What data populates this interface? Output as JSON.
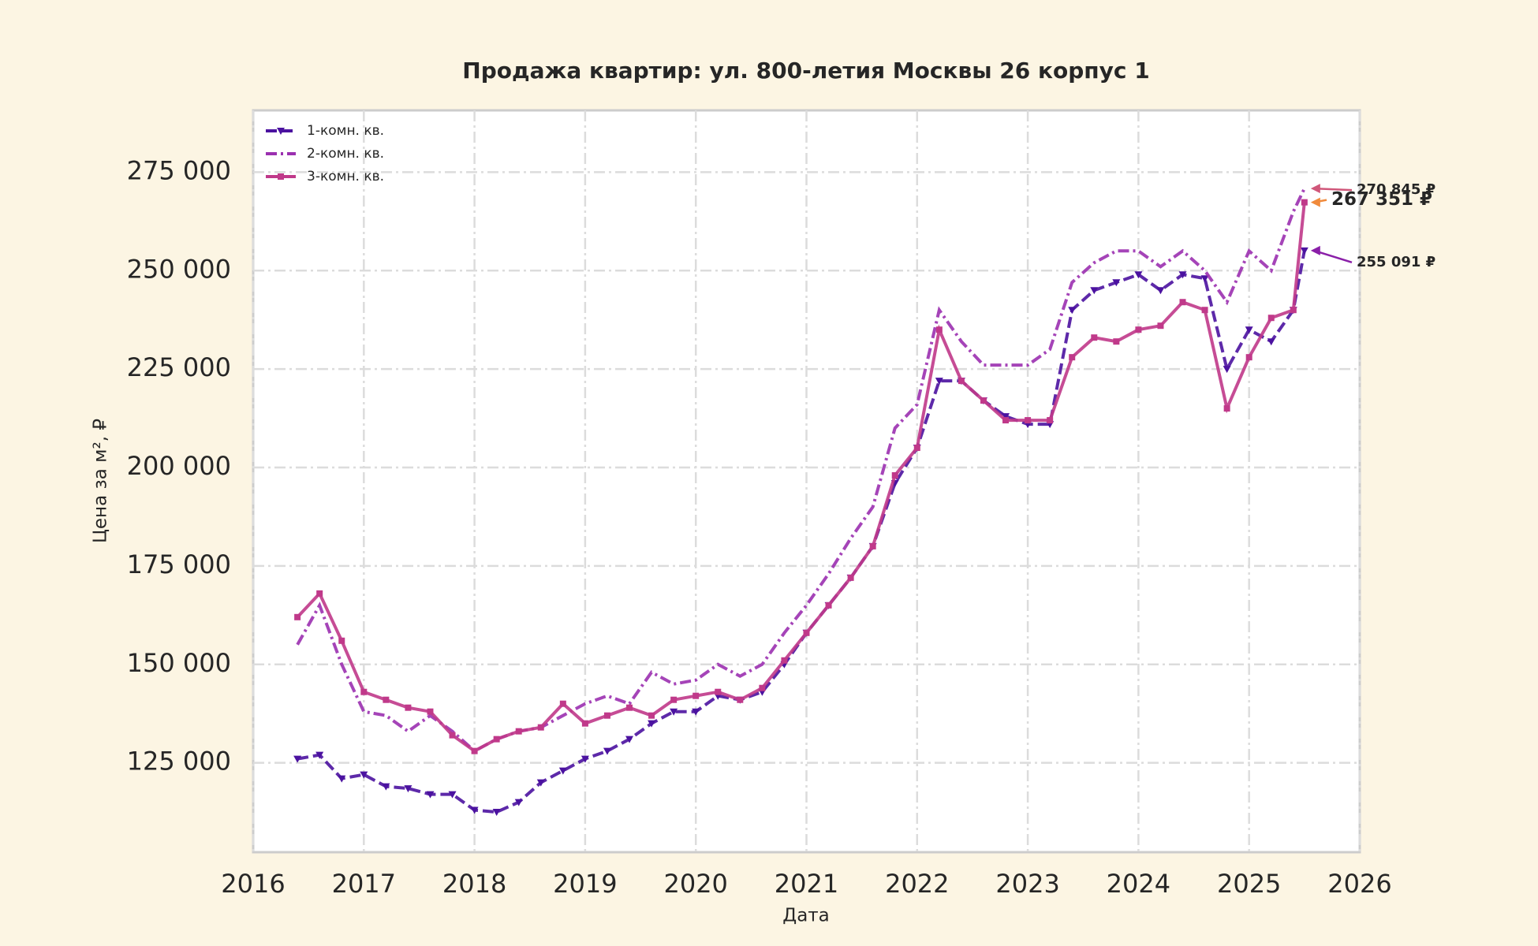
{
  "chart_data": {
    "type": "line",
    "title": "Продажа квартир: ул. 800-летия Москвы 26 корпус 1",
    "x_label": "Дата",
    "y_label": "Цена за м², ₽",
    "x": [
      2016.4,
      2016.6,
      2016.8,
      2017.0,
      2017.2,
      2017.4,
      2017.6,
      2017.8,
      2018.0,
      2018.2,
      2018.4,
      2018.6,
      2018.8,
      2019.0,
      2019.2,
      2019.4,
      2019.6,
      2019.8,
      2020.0,
      2020.2,
      2020.4,
      2020.6,
      2020.8,
      2021.0,
      2021.2,
      2021.4,
      2021.6,
      2021.8,
      2022.0,
      2022.2,
      2022.4,
      2022.6,
      2022.8,
      2023.0,
      2023.2,
      2023.4,
      2023.6,
      2023.8,
      2024.0,
      2024.2,
      2024.4,
      2024.6,
      2024.8,
      2025.0,
      2025.2,
      2025.4,
      2025.5
    ],
    "series": [
      {
        "name": "1-комн. кв.",
        "color": "#4b12a0",
        "linestyle": "dashed",
        "marker": "triangle-down",
        "values": [
          126000,
          127000,
          121000,
          122000,
          119000,
          118500,
          117000,
          117000,
          113000,
          112500,
          115000,
          120000,
          123000,
          126000,
          128000,
          131000,
          135000,
          138000,
          138000,
          142000,
          141000,
          143000,
          150000,
          158000,
          165000,
          172000,
          180000,
          196000,
          205000,
          222000,
          222000,
          217000,
          213000,
          211000,
          211000,
          240000,
          245000,
          247000,
          249000,
          245000,
          249000,
          248000,
          225000,
          235000,
          232000,
          240000,
          255091
        ]
      },
      {
        "name": "2-комн. кв.",
        "color": "#9b30b0",
        "linestyle": "dashdot",
        "marker": "none",
        "values": [
          155000,
          165000,
          150000,
          138000,
          137000,
          133000,
          137000,
          133000,
          128000,
          131000,
          133000,
          134000,
          137000,
          140000,
          142000,
          140000,
          148000,
          145000,
          146000,
          150000,
          147000,
          150000,
          158000,
          165000,
          173000,
          182000,
          190000,
          210000,
          216000,
          240000,
          232000,
          226000,
          226000,
          226000,
          230000,
          247000,
          252000,
          255000,
          255000,
          251000,
          255000,
          250000,
          242000,
          255000,
          250000,
          265000,
          270845
        ]
      },
      {
        "name": "3-комн. кв.",
        "color": "#c0398a",
        "linestyle": "solid",
        "marker": "square",
        "values": [
          162000,
          168000,
          156000,
          143000,
          141000,
          139000,
          138000,
          132000,
          128000,
          131000,
          133000,
          134000,
          140000,
          135000,
          137000,
          139000,
          137000,
          141000,
          142000,
          143000,
          141000,
          144000,
          151000,
          158000,
          165000,
          172000,
          180000,
          198000,
          205000,
          235000,
          222000,
          217000,
          212000,
          212000,
          212000,
          228000,
          233000,
          232000,
          235000,
          236000,
          242000,
          240000,
          215000,
          228000,
          238000,
          240000,
          267351
        ]
      }
    ],
    "annotations": [
      {
        "text": "270 845 ₽",
        "value": 270845,
        "color": "#d0577a"
      },
      {
        "text": "267 351 ₽",
        "value": 267351,
        "color": "#f08a3c"
      },
      {
        "text": "255 091 ₽",
        "value": 255091,
        "color": "#8a1fa8"
      }
    ],
    "xlim": [
      2016,
      2026
    ],
    "xticks": [
      2016,
      2017,
      2018,
      2019,
      2020,
      2021,
      2022,
      2023,
      2024,
      2025,
      2026
    ],
    "ylim": [
      102300,
      290700
    ],
    "yticks": [
      {
        "value": 125000,
        "label": "125 000"
      },
      {
        "value": 150000,
        "label": "150 000"
      },
      {
        "value": 175000,
        "label": "175 000"
      },
      {
        "value": 200000,
        "label": "200 000"
      },
      {
        "value": 225000,
        "label": "225 000"
      },
      {
        "value": 250000,
        "label": "250 000"
      },
      {
        "value": 275000,
        "label": "275 000"
      }
    ],
    "grid": true,
    "legend": "upper left"
  }
}
